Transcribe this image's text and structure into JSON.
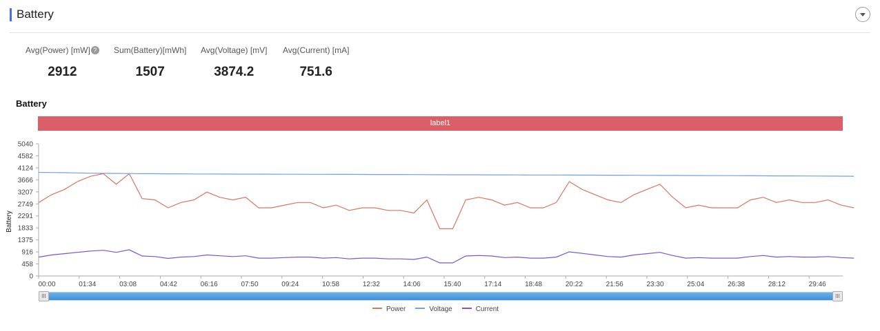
{
  "header": {
    "title": "Battery",
    "dropdown_icon": "chevron-down-circle-icon"
  },
  "stats": [
    {
      "label": "Avg(Power) [mW]",
      "value": "2912",
      "help": "?"
    },
    {
      "label": "Sum(Battery)[mWh]",
      "value": "1507"
    },
    {
      "label": "Avg(Voltage) [mV]",
      "value": "3874.2"
    },
    {
      "label": "Avg(Current) [mA]",
      "value": "751.6"
    }
  ],
  "chart_data": {
    "type": "line",
    "title": "Battery",
    "band_label": "label1",
    "band_color": "#db5f66",
    "ylabel": "Battery",
    "ylim": [
      0,
      5040
    ],
    "yticks": [
      "0",
      "458",
      "916",
      "1375",
      "1833",
      "2291",
      "2749",
      "3207",
      "3666",
      "4124",
      "4582",
      "5040"
    ],
    "xticks": [
      "00:00",
      "01:34",
      "03:08",
      "04:42",
      "06:16",
      "07:50",
      "09:24",
      "10:58",
      "12:32",
      "14:06",
      "15:40",
      "17:14",
      "18:48",
      "20:22",
      "21:56",
      "23:30",
      "25:04",
      "26:38",
      "28:12",
      "29:46"
    ],
    "x_step_seconds": 30,
    "legend_position": "bottom",
    "series": [
      {
        "name": "Power",
        "color": "#d9765e",
        "values": [
          2800,
          3100,
          3300,
          3600,
          3800,
          3900,
          3500,
          3900,
          2950,
          2900,
          2600,
          2800,
          2900,
          3200,
          3000,
          2900,
          3000,
          2600,
          2600,
          2700,
          2800,
          2800,
          2600,
          2700,
          2500,
          2600,
          2600,
          2500,
          2500,
          2400,
          2900,
          1800,
          1800,
          2900,
          3000,
          2900,
          2700,
          2800,
          2600,
          2600,
          2800,
          3600,
          3300,
          3100,
          2900,
          2800,
          3100,
          3300,
          3500,
          3000,
          2600,
          2700,
          2600,
          2600,
          2600,
          2900,
          3000,
          2800,
          2900,
          2800,
          2800,
          2900,
          2700,
          2600
        ]
      },
      {
        "name": "Voltage",
        "color": "#6f9ff0",
        "values": [
          3950,
          3945,
          3940,
          3930,
          3920,
          3915,
          3910,
          3905,
          3900,
          3900,
          3895,
          3895,
          3890,
          3890,
          3888,
          3886,
          3885,
          3884,
          3882,
          3880,
          3880,
          3878,
          3876,
          3875,
          3874,
          3872,
          3870,
          3870,
          3868,
          3866,
          3865,
          3862,
          3860,
          3860,
          3858,
          3856,
          3855,
          3854,
          3852,
          3850,
          3850,
          3848,
          3846,
          3845,
          3844,
          3842,
          3840,
          3838,
          3836,
          3834,
          3832,
          3830,
          3828,
          3826,
          3824,
          3822,
          3820,
          3818,
          3816,
          3814,
          3812,
          3810,
          3806,
          3804
        ]
      },
      {
        "name": "Current",
        "color": "#7b52d6",
        "values": [
          720,
          800,
          850,
          900,
          950,
          980,
          900,
          1000,
          760,
          740,
          670,
          720,
          740,
          800,
          770,
          740,
          770,
          680,
          680,
          700,
          720,
          720,
          680,
          700,
          650,
          680,
          680,
          650,
          650,
          630,
          720,
          500,
          500,
          760,
          780,
          760,
          700,
          720,
          680,
          680,
          720,
          920,
          860,
          800,
          740,
          720,
          800,
          850,
          900,
          780,
          680,
          700,
          680,
          680,
          680,
          740,
          780,
          720,
          740,
          720,
          720,
          740,
          700,
          680
        ]
      }
    ]
  }
}
